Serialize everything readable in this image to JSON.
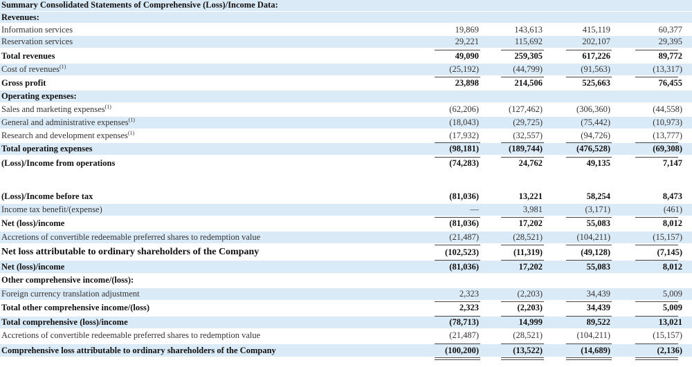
{
  "document": {
    "title": "Summary Consolidated Statements of Comprehensive (Loss)/Income Data:",
    "rows": [
      {
        "label": "Revenues:",
        "bold": true
      },
      {
        "label": "Information services",
        "values": [
          "19,869",
          "143,613",
          "415,119",
          "60,377"
        ]
      },
      {
        "label": "Reservation services",
        "values": [
          "29,221",
          "115,692",
          "202,107",
          "29,395"
        ]
      },
      {
        "label": "Total revenues",
        "bold": true,
        "values": [
          "49,090",
          "259,305",
          "617,226",
          "89,772"
        ]
      },
      {
        "label": "Cost of revenues",
        "note": "(1)",
        "values": [
          "(25,192)",
          "(44,799)",
          "(91,563)",
          "(13,317)"
        ]
      },
      {
        "label": "Gross profit",
        "bold": true,
        "values": [
          "23,898",
          "214,506",
          "525,663",
          "76,455"
        ]
      },
      {
        "label": "Operating expenses:",
        "bold": true
      },
      {
        "label": "Sales and marketing expenses",
        "note": "(1)",
        "values": [
          "(62,206)",
          "(127,462)",
          "(306,360)",
          "(44,558)"
        ]
      },
      {
        "label": "General and administrative expenses",
        "note": "(1)",
        "values": [
          "(18,043)",
          "(29,725)",
          "(75,442)",
          "(10,973)"
        ]
      },
      {
        "label": "Research and development expenses",
        "note": "(1)",
        "values": [
          "(17,932)",
          "(32,557)",
          "(94,726)",
          "(13,777)"
        ]
      },
      {
        "label": "Total operating expenses",
        "bold": true,
        "values": [
          "(98,181)",
          "(189,744)",
          "(476,528)",
          "(69,308)"
        ]
      },
      {
        "label": "(Loss)/Income from operations",
        "bold": true,
        "values": [
          "(74,283)",
          "24,762",
          "49,135",
          "7,147"
        ]
      },
      {
        "label": "",
        "spacer": true
      },
      {
        "label": "(Loss)/Income before tax",
        "bold": true,
        "values": [
          "(81,036)",
          "13,221",
          "58,254",
          "8,473"
        ]
      },
      {
        "label": "Income tax benefit/(expense)",
        "values": [
          "—",
          "3,981",
          "(3,171)",
          "(461)"
        ]
      },
      {
        "label": "Net (loss)/income",
        "bold": true,
        "values": [
          "(81,036)",
          "17,202",
          "55,083",
          "8,012"
        ]
      },
      {
        "label": "Accretions of convertible redeemable preferred shares to redemption value",
        "values": [
          "(21,487)",
          "(28,521)",
          "(104,211)",
          "(15,157)"
        ]
      },
      {
        "label": "Net loss attributable to ordinary shareholders of the Company",
        "bold": true,
        "big": true,
        "values": [
          "(102,523)",
          "(11,319)",
          "(49,128)",
          "(7,145)"
        ]
      },
      {
        "label": "Net (loss)/income",
        "bold": true,
        "values": [
          "(81,036)",
          "17,202",
          "55,083",
          "8,012"
        ]
      },
      {
        "label": "Other comprehensive income/(loss):",
        "bold": true
      },
      {
        "label": "Foreign currency translation adjustment",
        "values": [
          "2,323",
          "(2,203)",
          "34,439",
          "5,009"
        ]
      },
      {
        "label": "Total other comprehensive income/(loss)",
        "bold": true,
        "values": [
          "2,323",
          "(2,203)",
          "34,439",
          "5,009"
        ]
      },
      {
        "label": "Total comprehensive (loss)/income",
        "bold": true,
        "values": [
          "(78,713)",
          "14,999",
          "89,522",
          "13,021"
        ]
      },
      {
        "label": "Accretions of convertible redeemable preferred shares to redemption value",
        "values": [
          "(21,487)",
          "(28,521)",
          "(104,211)",
          "(15,157)"
        ]
      },
      {
        "label": "Comprehensive loss attributable to ordinary shareholders of the Company",
        "bold": true,
        "values": [
          "(100,200)",
          "(13,522)",
          "(14,689)",
          "(2,136)"
        ]
      }
    ]
  }
}
